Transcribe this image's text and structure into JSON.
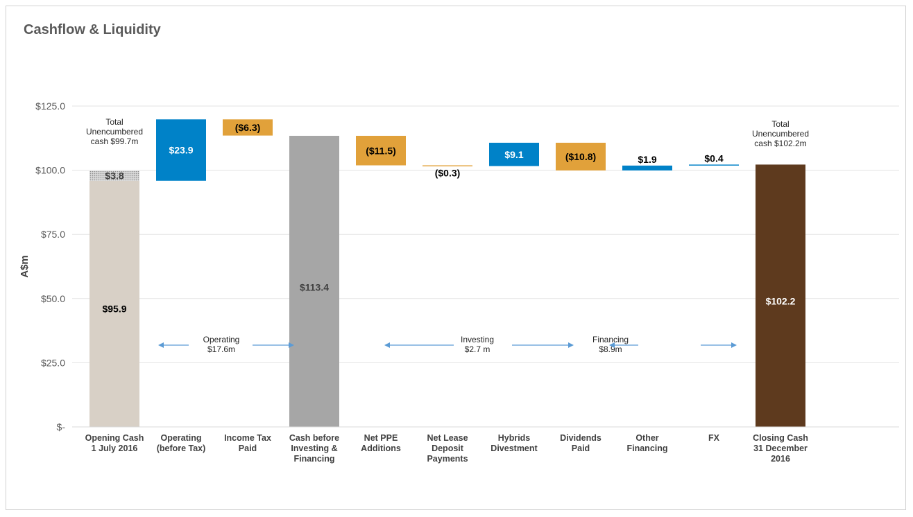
{
  "page": {
    "title": "Cashflow & Liquidity"
  },
  "chart_data": {
    "type": "bar",
    "subtype": "waterfall",
    "title": "Cashflow & Liquidity",
    "ylabel": "A$m",
    "xlabel": "",
    "ylim": [
      0,
      125
    ],
    "yticks": [
      0,
      25,
      50,
      75,
      100,
      125
    ],
    "ytick_labels": [
      "$-",
      "$25.0",
      "$50.0",
      "$75.0",
      "$100.0",
      "$125.0"
    ],
    "grid": true,
    "categories": [
      {
        "lines": [
          "Opening Cash",
          "1 July 2016"
        ]
      },
      {
        "lines": [
          "Operating",
          "(before Tax)"
        ]
      },
      {
        "lines": [
          "Income Tax",
          "Paid"
        ]
      },
      {
        "lines": [
          "Cash before",
          "Investing &",
          "Financing"
        ]
      },
      {
        "lines": [
          "Net PPE",
          "Additions"
        ]
      },
      {
        "lines": [
          "Net Lease",
          "Deposit",
          "Payments"
        ]
      },
      {
        "lines": [
          "Hybrids",
          "Divestment"
        ]
      },
      {
        "lines": [
          "Dividends",
          "Paid"
        ]
      },
      {
        "lines": [
          "Other",
          "Financing"
        ]
      },
      {
        "lines": [
          "FX"
        ]
      },
      {
        "lines": [
          "Closing Cash",
          "31 December",
          "2016"
        ]
      }
    ],
    "bars": [
      {
        "low": 0,
        "high": 95.9,
        "value": 95.9,
        "label": "$95.9",
        "kind": "opening",
        "color": "#d8d0c6",
        "label_color": "#000000"
      },
      {
        "low": 95.9,
        "high": 119.8,
        "value": 23.9,
        "label": "$23.9",
        "kind": "increase",
        "color": "#0082c8",
        "label_color": "#ffffff"
      },
      {
        "low": 113.5,
        "high": 119.8,
        "value": -6.3,
        "label": "($6.3)",
        "kind": "decrease",
        "color": "#e1a13a",
        "label_color": "#000000"
      },
      {
        "low": 0,
        "high": 113.4,
        "value": 113.4,
        "label": "$113.4",
        "kind": "subtotal",
        "color": "#a6a6a6",
        "label_color": "#404040"
      },
      {
        "low": 101.9,
        "high": 113.4,
        "value": -11.5,
        "label": "($11.5)",
        "kind": "decrease",
        "color": "#e1a13a",
        "label_color": "#000000"
      },
      {
        "low": 101.6,
        "high": 101.9,
        "value": -0.3,
        "label": "($0.3)",
        "kind": "decrease",
        "color": "#e1a13a",
        "label_color": "#000000"
      },
      {
        "low": 101.6,
        "high": 110.7,
        "value": 9.1,
        "label": "$9.1",
        "kind": "increase",
        "color": "#0082c8",
        "label_color": "#ffffff"
      },
      {
        "low": 99.9,
        "high": 110.7,
        "value": -10.8,
        "label": "($10.8)",
        "kind": "decrease",
        "color": "#e1a13a",
        "label_color": "#000000"
      },
      {
        "low": 99.9,
        "high": 101.8,
        "value": 1.9,
        "label": "$1.9",
        "kind": "increase",
        "color": "#0082c8",
        "label_color": "#000000"
      },
      {
        "low": 101.8,
        "high": 102.2,
        "value": 0.4,
        "label": "$0.4",
        "kind": "increase",
        "color": "#0082c8",
        "label_color": "#000000"
      },
      {
        "low": 0,
        "high": 102.2,
        "value": 102.2,
        "label": "$102.2",
        "kind": "closing",
        "color": "#5e3a1e",
        "label_color": "#ffffff"
      }
    ],
    "restricted_cash": {
      "low": 95.9,
      "high": 99.7,
      "value": 3.8,
      "label": "$3.8",
      "color": "#bfbfbf"
    },
    "annotations": [
      {
        "lines": [
          "Total",
          "Unencumbered",
          "cash $99.7m"
        ]
      },
      {
        "lines": [
          "Total",
          "Unencumbered",
          "cash $102.2m"
        ]
      }
    ],
    "ranges": [
      {
        "lines": [
          "Operating",
          "$17.6m"
        ]
      },
      {
        "lines": [
          "Investing",
          "$2.7 m"
        ]
      },
      {
        "lines": [
          "Financing",
          "$8.9m"
        ]
      }
    ],
    "arrow_color": "#5b9bd5"
  }
}
